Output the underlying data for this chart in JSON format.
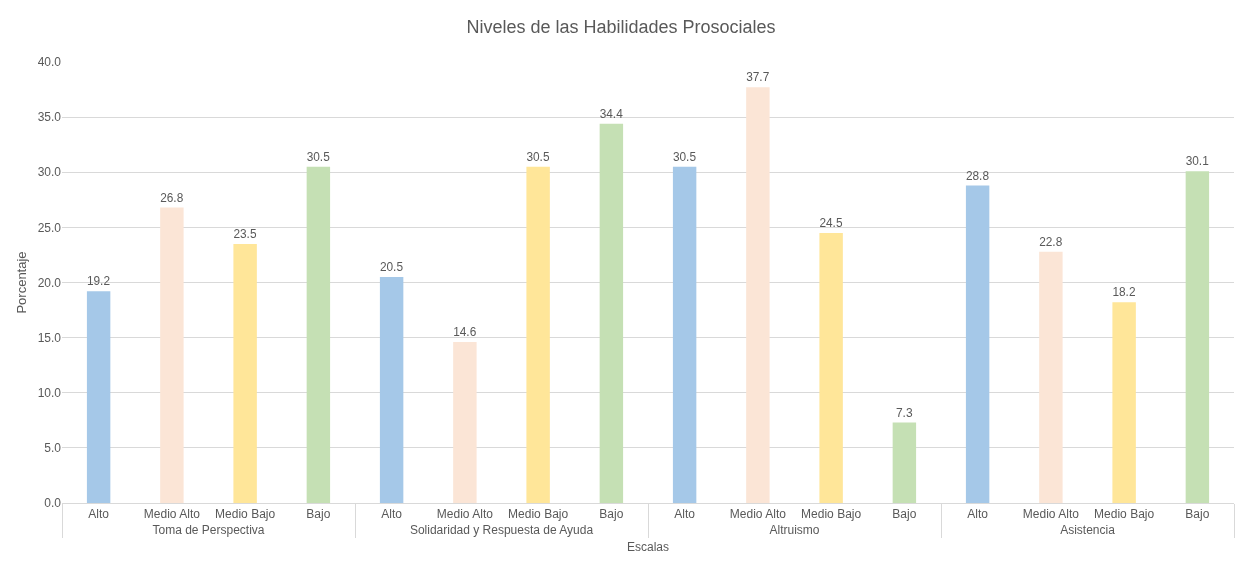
{
  "chart_data": {
    "type": "bar",
    "title": "Niveles de las Habilidades Prosociales",
    "xlabel": "Escalas",
    "ylabel": "Porcentaje",
    "categories": [
      "Toma de Perspectiva",
      "Solidaridad y Respuesta de Ayuda",
      "Altruismo",
      "Asistencia"
    ],
    "series": [
      {
        "name": "Alto",
        "color": "#a5c8e8",
        "values": [
          19.2,
          20.5,
          30.5,
          28.8
        ]
      },
      {
        "name": "Medio Alto",
        "color": "#fbe5d6",
        "values": [
          26.8,
          14.6,
          37.7,
          22.8
        ]
      },
      {
        "name": "Medio Bajo",
        "color": "#ffe699",
        "values": [
          23.5,
          30.5,
          24.5,
          18.2
        ]
      },
      {
        "name": "Bajo",
        "color": "#c5e0b4",
        "values": [
          30.5,
          34.4,
          7.3,
          30.1
        ]
      }
    ],
    "ylim": [
      0,
      40
    ],
    "yticks": [
      {
        "value": 0,
        "label": "0.0"
      },
      {
        "value": 5,
        "label": "5.0"
      },
      {
        "value": 10,
        "label": "10.0"
      },
      {
        "value": 15,
        "label": "15.0"
      },
      {
        "value": 20,
        "label": "20.0"
      },
      {
        "value": 25,
        "label": "25.0"
      },
      {
        "value": 30,
        "label": "30.0"
      },
      {
        "value": 35,
        "label": "35.0"
      },
      {
        "value": 40,
        "label": "40.0"
      }
    ],
    "grid": "y",
    "data_labels": true
  }
}
